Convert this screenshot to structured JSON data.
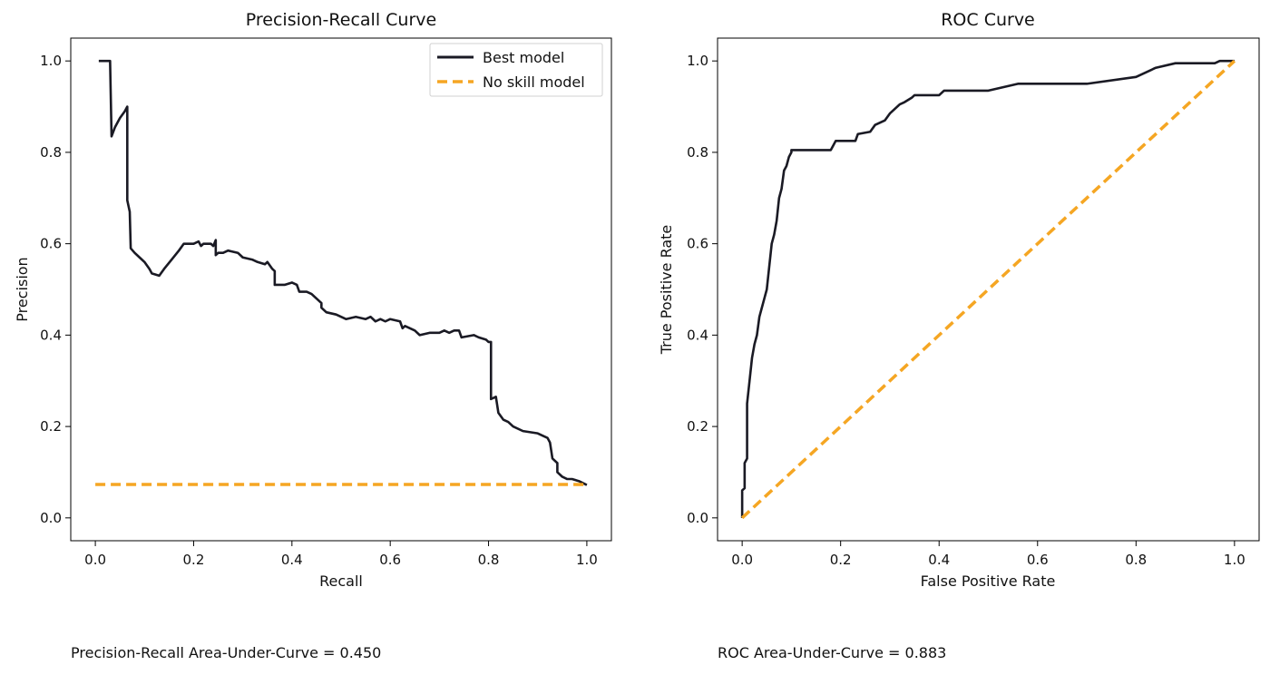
{
  "chart_data": [
    {
      "type": "line",
      "title": "Precision-Recall Curve",
      "xlabel": "Recall",
      "ylabel": "Precision",
      "xlim": [
        -0.05,
        1.05
      ],
      "ylim": [
        -0.05,
        1.05
      ],
      "xticks": [
        "0.0",
        "0.2",
        "0.4",
        "0.6",
        "0.8",
        "1.0"
      ],
      "yticks": [
        "0.0",
        "0.2",
        "0.4",
        "0.6",
        "0.8",
        "1.0"
      ],
      "grid": false,
      "legend_position": "top-right",
      "series": [
        {
          "name": "Best model",
          "color": "#1a1a24",
          "style": "solid",
          "points": [
            [
              0.007,
              1.0
            ],
            [
              0.03,
              1.0
            ],
            [
              0.033,
              0.835
            ],
            [
              0.04,
              0.855
            ],
            [
              0.05,
              0.875
            ],
            [
              0.06,
              0.89
            ],
            [
              0.065,
              0.9
            ],
            [
              0.065,
              0.695
            ],
            [
              0.07,
              0.67
            ],
            [
              0.072,
              0.59
            ],
            [
              0.08,
              0.58
            ],
            [
              0.09,
              0.57
            ],
            [
              0.1,
              0.56
            ],
            [
              0.11,
              0.545
            ],
            [
              0.115,
              0.535
            ],
            [
              0.13,
              0.53
            ],
            [
              0.14,
              0.545
            ],
            [
              0.155,
              0.565
            ],
            [
              0.17,
              0.585
            ],
            [
              0.18,
              0.6
            ],
            [
              0.2,
              0.6
            ],
            [
              0.21,
              0.605
            ],
            [
              0.215,
              0.595
            ],
            [
              0.22,
              0.6
            ],
            [
              0.235,
              0.6
            ],
            [
              0.24,
              0.595
            ],
            [
              0.245,
              0.608
            ],
            [
              0.245,
              0.575
            ],
            [
              0.25,
              0.58
            ],
            [
              0.26,
              0.58
            ],
            [
              0.27,
              0.585
            ],
            [
              0.29,
              0.58
            ],
            [
              0.3,
              0.57
            ],
            [
              0.32,
              0.565
            ],
            [
              0.33,
              0.56
            ],
            [
              0.345,
              0.555
            ],
            [
              0.35,
              0.56
            ],
            [
              0.36,
              0.545
            ],
            [
              0.365,
              0.54
            ],
            [
              0.365,
              0.51
            ],
            [
              0.385,
              0.51
            ],
            [
              0.4,
              0.515
            ],
            [
              0.41,
              0.51
            ],
            [
              0.415,
              0.495
            ],
            [
              0.43,
              0.495
            ],
            [
              0.44,
              0.49
            ],
            [
              0.45,
              0.48
            ],
            [
              0.46,
              0.47
            ],
            [
              0.46,
              0.46
            ],
            [
              0.47,
              0.45
            ],
            [
              0.49,
              0.445
            ],
            [
              0.5,
              0.44
            ],
            [
              0.51,
              0.435
            ],
            [
              0.53,
              0.44
            ],
            [
              0.55,
              0.435
            ],
            [
              0.56,
              0.44
            ],
            [
              0.57,
              0.43
            ],
            [
              0.58,
              0.435
            ],
            [
              0.59,
              0.43
            ],
            [
              0.6,
              0.435
            ],
            [
              0.62,
              0.43
            ],
            [
              0.625,
              0.415
            ],
            [
              0.63,
              0.42
            ],
            [
              0.65,
              0.41
            ],
            [
              0.66,
              0.4
            ],
            [
              0.68,
              0.405
            ],
            [
              0.7,
              0.405
            ],
            [
              0.71,
              0.41
            ],
            [
              0.72,
              0.405
            ],
            [
              0.73,
              0.41
            ],
            [
              0.74,
              0.41
            ],
            [
              0.745,
              0.395
            ],
            [
              0.77,
              0.4
            ],
            [
              0.78,
              0.395
            ],
            [
              0.795,
              0.39
            ],
            [
              0.8,
              0.385
            ],
            [
              0.805,
              0.385
            ],
            [
              0.805,
              0.26
            ],
            [
              0.815,
              0.265
            ],
            [
              0.82,
              0.23
            ],
            [
              0.83,
              0.215
            ],
            [
              0.84,
              0.21
            ],
            [
              0.85,
              0.2
            ],
            [
              0.87,
              0.19
            ],
            [
              0.9,
              0.185
            ],
            [
              0.92,
              0.175
            ],
            [
              0.925,
              0.165
            ],
            [
              0.93,
              0.13
            ],
            [
              0.94,
              0.12
            ],
            [
              0.94,
              0.1
            ],
            [
              0.95,
              0.09
            ],
            [
              0.96,
              0.085
            ],
            [
              0.97,
              0.085
            ],
            [
              0.985,
              0.08
            ],
            [
              1.0,
              0.072
            ]
          ]
        },
        {
          "name": "No skill model",
          "color": "#f5a623",
          "style": "dashed",
          "points": [
            [
              0.0,
              0.073
            ],
            [
              1.0,
              0.073
            ]
          ]
        }
      ]
    },
    {
      "type": "line",
      "title": "ROC Curve",
      "xlabel": "False Positive Rate",
      "ylabel": "True Positive Rate",
      "xlim": [
        -0.05,
        1.05
      ],
      "ylim": [
        -0.05,
        1.05
      ],
      "xticks": [
        "0.0",
        "0.2",
        "0.4",
        "0.6",
        "0.8",
        "1.0"
      ],
      "yticks": [
        "0.0",
        "0.2",
        "0.4",
        "0.6",
        "0.8",
        "1.0"
      ],
      "grid": false,
      "series": [
        {
          "color": "#1a1a24",
          "style": "solid",
          "points": [
            [
              0.0,
              0.0
            ],
            [
              0.0,
              0.06
            ],
            [
              0.005,
              0.065
            ],
            [
              0.005,
              0.12
            ],
            [
              0.01,
              0.13
            ],
            [
              0.01,
              0.25
            ],
            [
              0.015,
              0.3
            ],
            [
              0.02,
              0.35
            ],
            [
              0.025,
              0.38
            ],
            [
              0.03,
              0.4
            ],
            [
              0.035,
              0.44
            ],
            [
              0.04,
              0.46
            ],
            [
              0.045,
              0.48
            ],
            [
              0.05,
              0.5
            ],
            [
              0.055,
              0.55
            ],
            [
              0.06,
              0.6
            ],
            [
              0.065,
              0.62
            ],
            [
              0.07,
              0.65
            ],
            [
              0.075,
              0.7
            ],
            [
              0.08,
              0.72
            ],
            [
              0.085,
              0.76
            ],
            [
              0.09,
              0.77
            ],
            [
              0.095,
              0.79
            ],
            [
              0.1,
              0.8
            ],
            [
              0.1,
              0.805
            ],
            [
              0.18,
              0.805
            ],
            [
              0.185,
              0.815
            ],
            [
              0.19,
              0.825
            ],
            [
              0.23,
              0.825
            ],
            [
              0.235,
              0.84
            ],
            [
              0.26,
              0.845
            ],
            [
              0.27,
              0.86
            ],
            [
              0.28,
              0.865
            ],
            [
              0.29,
              0.87
            ],
            [
              0.3,
              0.885
            ],
            [
              0.31,
              0.895
            ],
            [
              0.32,
              0.905
            ],
            [
              0.33,
              0.91
            ],
            [
              0.345,
              0.92
            ],
            [
              0.35,
              0.925
            ],
            [
              0.4,
              0.925
            ],
            [
              0.41,
              0.935
            ],
            [
              0.5,
              0.935
            ],
            [
              0.52,
              0.94
            ],
            [
              0.54,
              0.945
            ],
            [
              0.56,
              0.95
            ],
            [
              0.7,
              0.95
            ],
            [
              0.8,
              0.965
            ],
            [
              0.82,
              0.975
            ],
            [
              0.84,
              0.985
            ],
            [
              0.88,
              0.995
            ],
            [
              0.96,
              0.995
            ],
            [
              0.97,
              1.0
            ],
            [
              1.0,
              1.0
            ]
          ]
        },
        {
          "color": "#f5a623",
          "style": "dashed",
          "points": [
            [
              0.0,
              0.0
            ],
            [
              1.0,
              1.0
            ]
          ]
        }
      ]
    }
  ],
  "captions": {
    "pr_auc": "Precision-Recall Area-Under-Curve = 0.450",
    "roc_auc": "ROC Area-Under-Curve = 0.883"
  }
}
